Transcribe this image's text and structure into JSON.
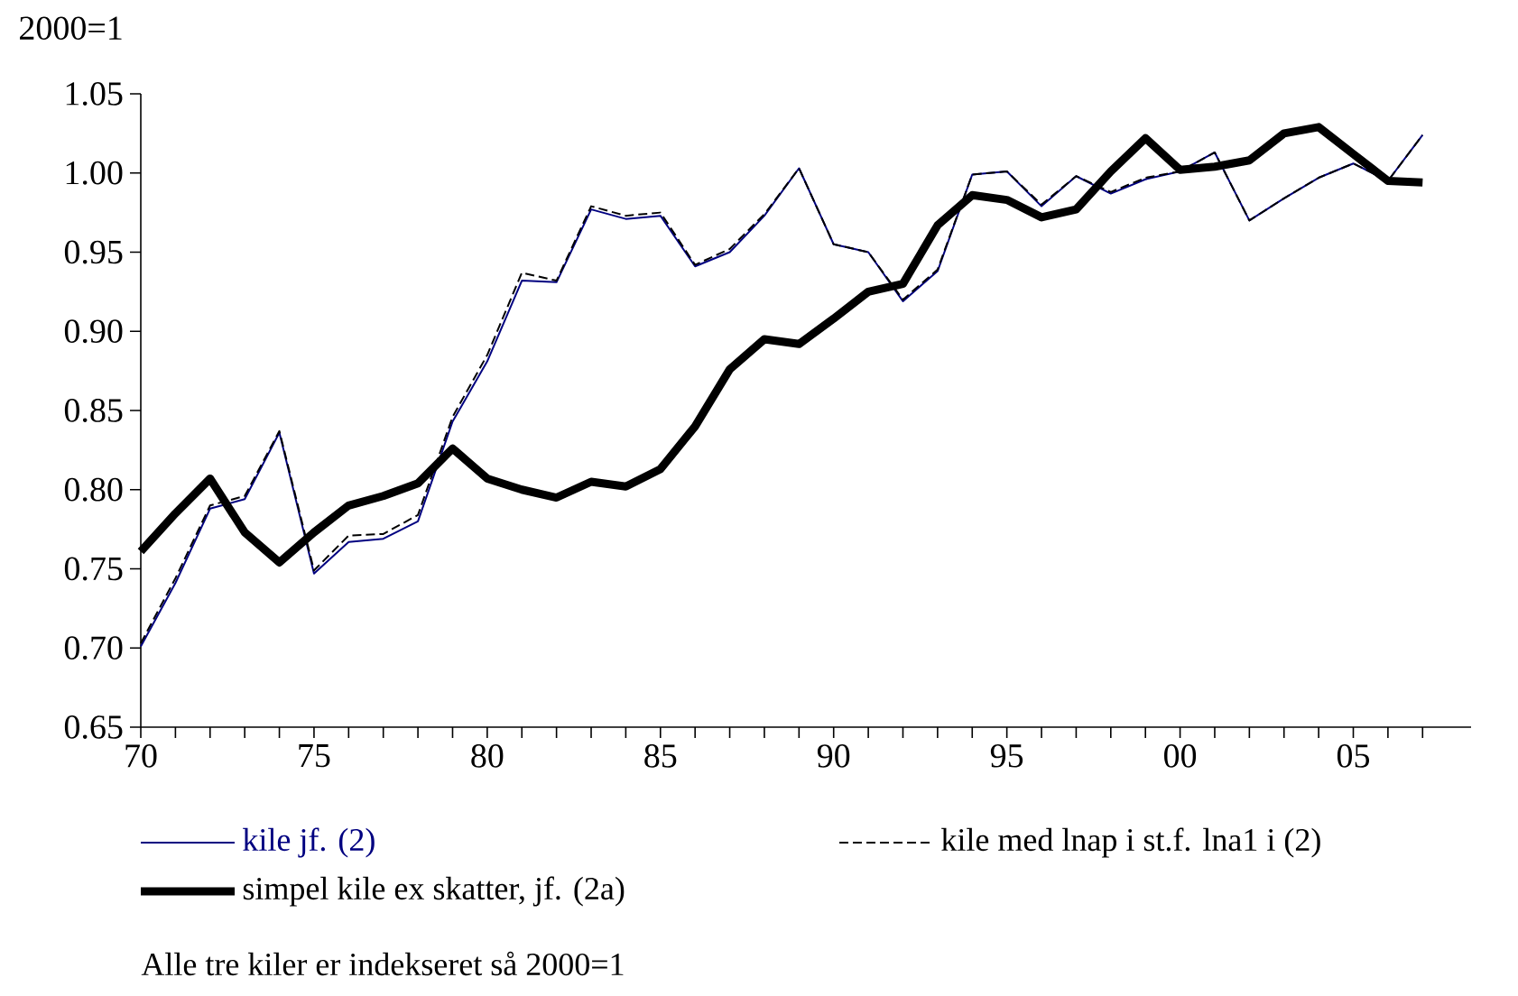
{
  "chart_data": {
    "type": "line",
    "ylabel": "2000=1",
    "legend": "bottom",
    "x": [
      1970,
      1971,
      1972,
      1973,
      1974,
      1975,
      1976,
      1977,
      1978,
      1979,
      1980,
      1981,
      1982,
      1983,
      1984,
      1985,
      1986,
      1987,
      1988,
      1989,
      1990,
      1991,
      1992,
      1993,
      1994,
      1995,
      1996,
      1997,
      1998,
      1999,
      2000,
      2001,
      2002,
      2003,
      2004,
      2005,
      2006,
      2007
    ],
    "series": [
      {
        "name": "kile jf. (2)",
        "color": "#000080",
        "line_style": "solid",
        "values": [
          0.701,
          0.741,
          0.788,
          0.794,
          0.836,
          0.747,
          0.767,
          0.769,
          0.78,
          0.843,
          0.881,
          0.932,
          0.931,
          0.977,
          0.971,
          0.973,
          0.941,
          0.95,
          0.973,
          1.003,
          0.955,
          0.95,
          0.919,
          0.938,
          0.999,
          1.001,
          0.979,
          0.998,
          0.987,
          0.996,
          1.001,
          1.013,
          0.97,
          0.984,
          0.997,
          1.006,
          0.995,
          1.024
        ]
      },
      {
        "name": "kile med lnap i st.f. lna1 i (2)",
        "color": "#000000",
        "line_style": "dashed",
        "values": [
          0.703,
          0.744,
          0.79,
          0.796,
          0.837,
          0.749,
          0.771,
          0.772,
          0.784,
          0.846,
          0.885,
          0.937,
          0.932,
          0.979,
          0.973,
          0.975,
          0.942,
          0.952,
          0.974,
          1.003,
          0.955,
          0.95,
          0.92,
          0.939,
          0.999,
          1.001,
          0.98,
          0.998,
          0.988,
          0.997,
          1.001,
          1.013,
          0.97,
          0.984,
          0.997,
          1.006,
          0.995,
          1.024
        ]
      },
      {
        "name": "simpel kile ex skatter, jf. (2a)",
        "color": "#000000",
        "line_style": "solid",
        "values": [
          0.761,
          0.785,
          0.807,
          0.773,
          0.754,
          0.773,
          0.79,
          0.796,
          0.804,
          0.826,
          0.807,
          0.8,
          0.795,
          0.805,
          0.802,
          0.813,
          0.84,
          0.876,
          0.895,
          0.892,
          0.908,
          0.925,
          0.93,
          0.967,
          0.986,
          0.983,
          0.972,
          0.977,
          1.001,
          1.022,
          1.002,
          1.004,
          1.008,
          1.025,
          1.029,
          1.012,
          0.995,
          0.994
        ]
      }
    ],
    "xlim": [
      1970,
      2008.4
    ],
    "ylim": [
      0.65,
      1.05
    ],
    "xticks": [
      {
        "value": 1970,
        "label": "70"
      },
      {
        "value": 1971,
        "label": null
      },
      {
        "value": 1972,
        "label": null
      },
      {
        "value": 1973,
        "label": null
      },
      {
        "value": 1974,
        "label": null
      },
      {
        "value": 1975,
        "label": "75"
      },
      {
        "value": 1976,
        "label": null
      },
      {
        "value": 1977,
        "label": null
      },
      {
        "value": 1978,
        "label": null
      },
      {
        "value": 1979,
        "label": null
      },
      {
        "value": 1980,
        "label": "80"
      },
      {
        "value": 1981,
        "label": null
      },
      {
        "value": 1982,
        "label": null
      },
      {
        "value": 1983,
        "label": null
      },
      {
        "value": 1984,
        "label": null
      },
      {
        "value": 1985,
        "label": "85"
      },
      {
        "value": 1986,
        "label": null
      },
      {
        "value": 1987,
        "label": null
      },
      {
        "value": 1988,
        "label": null
      },
      {
        "value": 1989,
        "label": null
      },
      {
        "value": 1990,
        "label": "90"
      },
      {
        "value": 1991,
        "label": null
      },
      {
        "value": 1992,
        "label": null
      },
      {
        "value": 1993,
        "label": null
      },
      {
        "value": 1994,
        "label": null
      },
      {
        "value": 1995,
        "label": "95"
      },
      {
        "value": 1996,
        "label": null
      },
      {
        "value": 1997,
        "label": null
      },
      {
        "value": 1998,
        "label": null
      },
      {
        "value": 1999,
        "label": null
      },
      {
        "value": 2000,
        "label": "00"
      },
      {
        "value": 2001,
        "label": null
      },
      {
        "value": 2002,
        "label": null
      },
      {
        "value": 2003,
        "label": null
      },
      {
        "value": 2004,
        "label": null
      },
      {
        "value": 2005,
        "label": "05"
      },
      {
        "value": 2006,
        "label": null
      },
      {
        "value": 2007,
        "label": null
      }
    ],
    "yticks": [
      {
        "value": 0.65,
        "label": "0.65"
      },
      {
        "value": 0.7,
        "label": "0.70"
      },
      {
        "value": 0.75,
        "label": "0.75"
      },
      {
        "value": 0.8,
        "label": "0.80"
      },
      {
        "value": 0.85,
        "label": "0.85"
      },
      {
        "value": 0.9,
        "label": "0.90"
      },
      {
        "value": 0.95,
        "label": "0.95"
      },
      {
        "value": 1.0,
        "label": "1.00"
      },
      {
        "value": 1.05,
        "label": "1.05"
      }
    ],
    "annotations": [
      "Alle tre kiler er indekseret så 2000=1"
    ]
  }
}
